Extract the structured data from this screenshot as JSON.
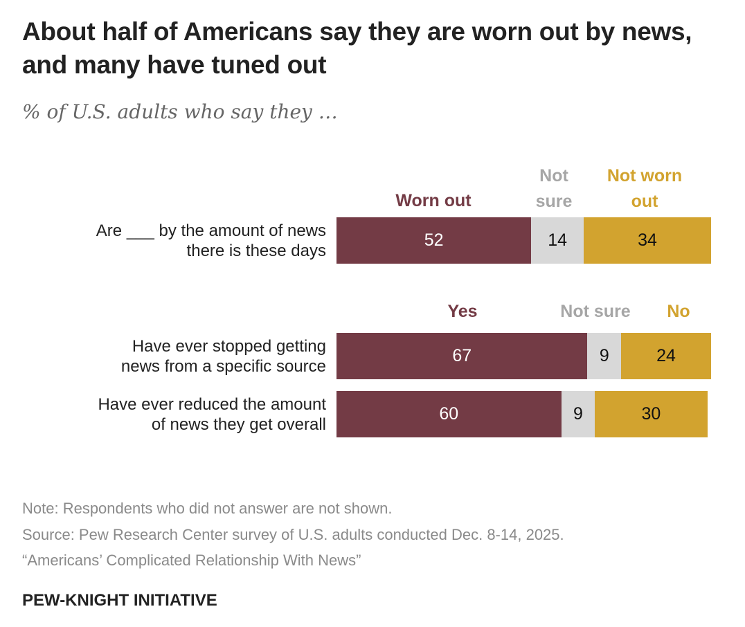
{
  "title": "About half of Americans say they are worn out by news, and many have tuned out",
  "subtitle": "% of U.S. adults who say they …",
  "colors": {
    "primary": "#733b45",
    "not_sure": "#d8d8d8",
    "secondary": "#d2a32f",
    "not_sure_label": "#a6a6a6"
  },
  "chart_data": [
    {
      "type": "bar",
      "orientation": "horizontal-stacked",
      "legend": [
        "Worn out",
        "Not sure",
        "Not worn out"
      ],
      "legend_lines": [
        [
          "Worn out"
        ],
        [
          "Not",
          "sure"
        ],
        [
          "Not worn",
          "out"
        ]
      ],
      "categories": [
        "Are ___ by the amount of news there is these days"
      ],
      "category_lines": [
        [
          "Are ___ by the amount of news",
          "there is these days"
        ]
      ],
      "series": [
        {
          "name": "Worn out",
          "values": [
            52
          ]
        },
        {
          "name": "Not sure",
          "values": [
            14
          ]
        },
        {
          "name": "Not worn out",
          "values": [
            34
          ]
        }
      ],
      "xlim": [
        0,
        100
      ]
    },
    {
      "type": "bar",
      "orientation": "horizontal-stacked",
      "legend": [
        "Yes",
        "Not sure",
        "No"
      ],
      "categories": [
        "Have ever stopped getting news from a specific source",
        "Have ever reduced the amount of news they get overall"
      ],
      "category_lines": [
        [
          "Have ever stopped getting",
          "news from a specific source"
        ],
        [
          "Have ever reduced the amount",
          "of news they get overall"
        ]
      ],
      "series": [
        {
          "name": "Yes",
          "values": [
            67,
            60
          ]
        },
        {
          "name": "Not sure",
          "values": [
            9,
            9
          ]
        },
        {
          "name": "No",
          "values": [
            24,
            30
          ]
        }
      ],
      "xlim": [
        0,
        100
      ]
    }
  ],
  "notes": [
    "Note: Respondents who did not answer are not shown.",
    "Source: Pew Research Center survey of U.S. adults conducted Dec. 8-14, 2025.",
    "“Americans’ Complicated Relationship With News”"
  ],
  "footer": "PEW-KNIGHT INITIATIVE"
}
